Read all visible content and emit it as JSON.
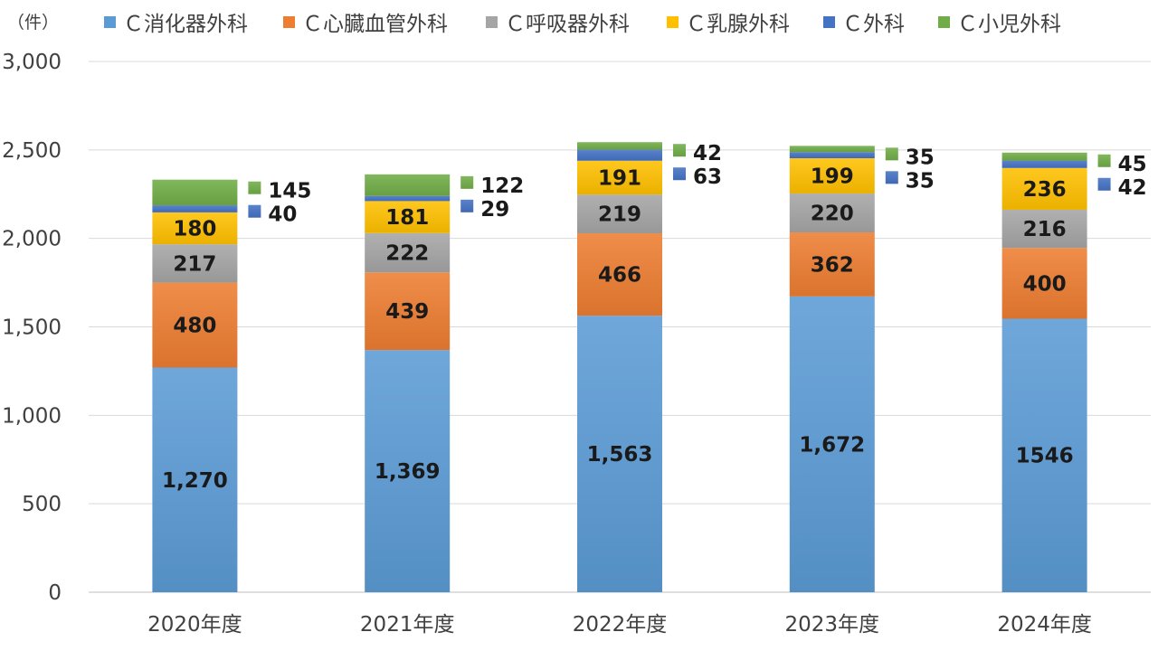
{
  "chart_data": {
    "type": "bar",
    "stacked": true,
    "unit_label": "（件）",
    "categories": [
      "2020年度",
      "2021年度",
      "2022年度",
      "2023年度",
      "2024年度"
    ],
    "series": [
      {
        "name": "Ｃ消化器外科",
        "color": "#5b9bd5",
        "values": [
          1270,
          1369,
          1563,
          1672,
          1546
        ],
        "value_labels": [
          "1,270",
          "1,369",
          "1,563",
          "1,672",
          "1546"
        ]
      },
      {
        "name": "Ｃ心臓血管外科",
        "color": "#ed7d31",
        "values": [
          480,
          439,
          466,
          362,
          400
        ],
        "value_labels": [
          "480",
          "439",
          "466",
          "362",
          "400"
        ]
      },
      {
        "name": "Ｃ呼吸器外科",
        "color": "#a5a5a5",
        "values": [
          217,
          222,
          219,
          220,
          216
        ],
        "value_labels": [
          "217",
          "222",
          "219",
          "220",
          "216"
        ]
      },
      {
        "name": "Ｃ乳腺外科",
        "color": "#ffc000",
        "values": [
          180,
          181,
          191,
          199,
          236
        ],
        "value_labels": [
          "180",
          "181",
          "191",
          "199",
          "236"
        ]
      },
      {
        "name": "Ｃ外科",
        "color": "#4472c4",
        "values": [
          40,
          29,
          63,
          35,
          42
        ],
        "value_labels": [
          "40",
          "29",
          "63",
          "35",
          "42"
        ]
      },
      {
        "name": "Ｃ小児外科",
        "color": "#70ad47",
        "values": [
          145,
          122,
          42,
          35,
          45
        ],
        "value_labels": [
          "145",
          "122",
          "42",
          "35",
          "45"
        ]
      }
    ],
    "yticks": [
      "0",
      "500",
      "1,000",
      "1,500",
      "2,000",
      "2,500",
      "3,000"
    ],
    "ylim": [
      0,
      3000
    ],
    "grid": true,
    "legend": "top"
  }
}
